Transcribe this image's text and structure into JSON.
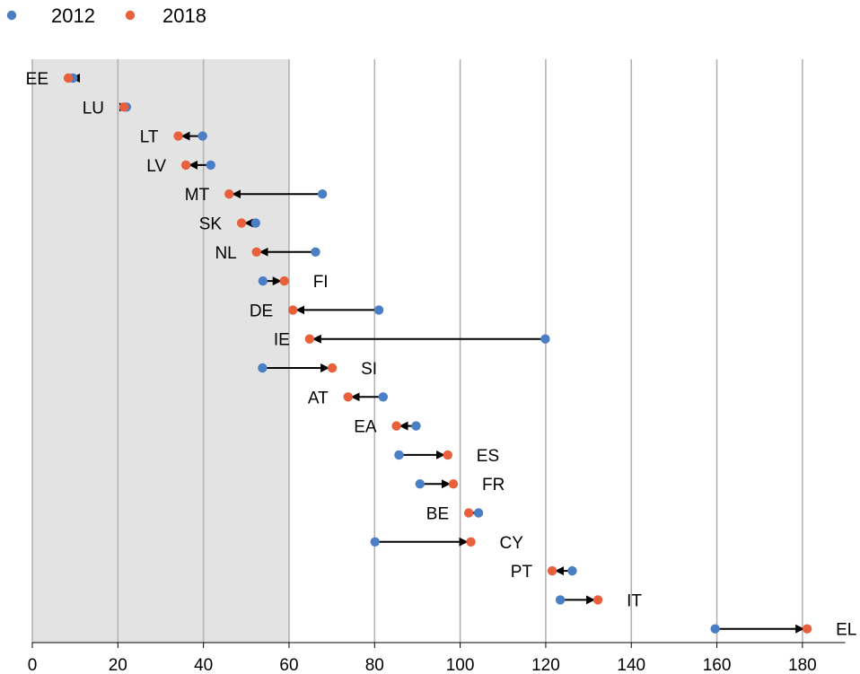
{
  "chart_data": {
    "type": "dumbbell",
    "title": "",
    "xlabel": "",
    "ylabel": "",
    "xlim": [
      0,
      190
    ],
    "x_ticks": [
      0,
      20,
      40,
      60,
      80,
      100,
      120,
      140,
      160,
      180
    ],
    "shaded_range": [
      0,
      60
    ],
    "grid": "vertical",
    "legend_position": "top-left",
    "series": [
      {
        "name": "2012",
        "color": "#4a7ec5"
      },
      {
        "name": "2018",
        "color": "#e8603c"
      }
    ],
    "countries": [
      {
        "label": "EE",
        "v2012": 9.5,
        "v2018": 8.4
      },
      {
        "label": "LU",
        "v2012": 22.0,
        "v2018": 21.4
      },
      {
        "label": "LT",
        "v2012": 39.8,
        "v2018": 34.1
      },
      {
        "label": "LV",
        "v2012": 41.7,
        "v2018": 35.9
      },
      {
        "label": "MT",
        "v2012": 67.8,
        "v2018": 46.0
      },
      {
        "label": "SK",
        "v2012": 52.2,
        "v2018": 48.9
      },
      {
        "label": "NL",
        "v2012": 66.2,
        "v2018": 52.4
      },
      {
        "label": "FI",
        "v2012": 53.9,
        "v2018": 58.9
      },
      {
        "label": "DE",
        "v2012": 81.0,
        "v2018": 60.9
      },
      {
        "label": "IE",
        "v2012": 119.9,
        "v2018": 64.8
      },
      {
        "label": "SI",
        "v2012": 53.8,
        "v2018": 70.1
      },
      {
        "label": "AT",
        "v2012": 82.0,
        "v2018": 73.8
      },
      {
        "label": "EA",
        "v2012": 89.7,
        "v2018": 85.1
      },
      {
        "label": "ES",
        "v2012": 85.7,
        "v2018": 97.1
      },
      {
        "label": "FR",
        "v2012": 90.6,
        "v2018": 98.4
      },
      {
        "label": "BE",
        "v2012": 104.3,
        "v2018": 102.0
      },
      {
        "label": "CY",
        "v2012": 80.1,
        "v2018": 102.5
      },
      {
        "label": "PT",
        "v2012": 126.2,
        "v2018": 121.5
      },
      {
        "label": "IT",
        "v2012": 123.4,
        "v2018": 132.2
      },
      {
        "label": "EL",
        "v2012": 159.6,
        "v2018": 181.1
      }
    ]
  }
}
